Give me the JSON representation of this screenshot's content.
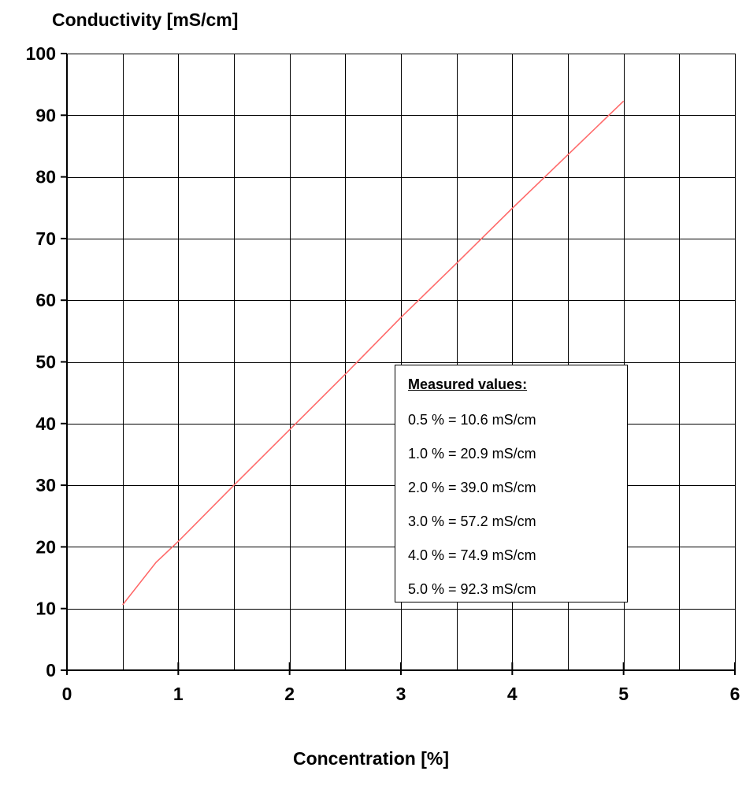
{
  "chart_data": {
    "type": "line",
    "xlabel": "Concentration [%]",
    "ylabel": "Conductivity [mS/cm]",
    "xlim": [
      0,
      6
    ],
    "ylim": [
      0,
      100
    ],
    "x_ticks": [
      "0",
      "1",
      "2",
      "3",
      "4",
      "5",
      "6"
    ],
    "y_ticks": [
      "0",
      "10",
      "20",
      "30",
      "40",
      "50",
      "60",
      "70",
      "80",
      "90",
      "100"
    ],
    "grid": true,
    "series": [
      {
        "x": [
          0.5,
          0.8,
          1.0,
          1.5,
          2.0,
          2.5,
          3.0,
          3.5,
          4.0,
          4.5,
          5.0
        ],
        "y": [
          10.6,
          17.5,
          20.9,
          30.0,
          39.0,
          48.0,
          57.2,
          66.0,
          74.9,
          83.6,
          92.3
        ],
        "color": "#ff6a6a"
      }
    ],
    "annotation": {
      "title": "Measured values:",
      "items": [
        "0.5 % = 10.6 mS/cm",
        "1.0 % = 20.9 mS/cm",
        "2.0 % = 39.0 mS/cm",
        "3.0 % = 57.2 mS/cm",
        "4.0 % = 74.9 mS/cm",
        "5.0 % = 92.3 mS/cm"
      ]
    }
  }
}
